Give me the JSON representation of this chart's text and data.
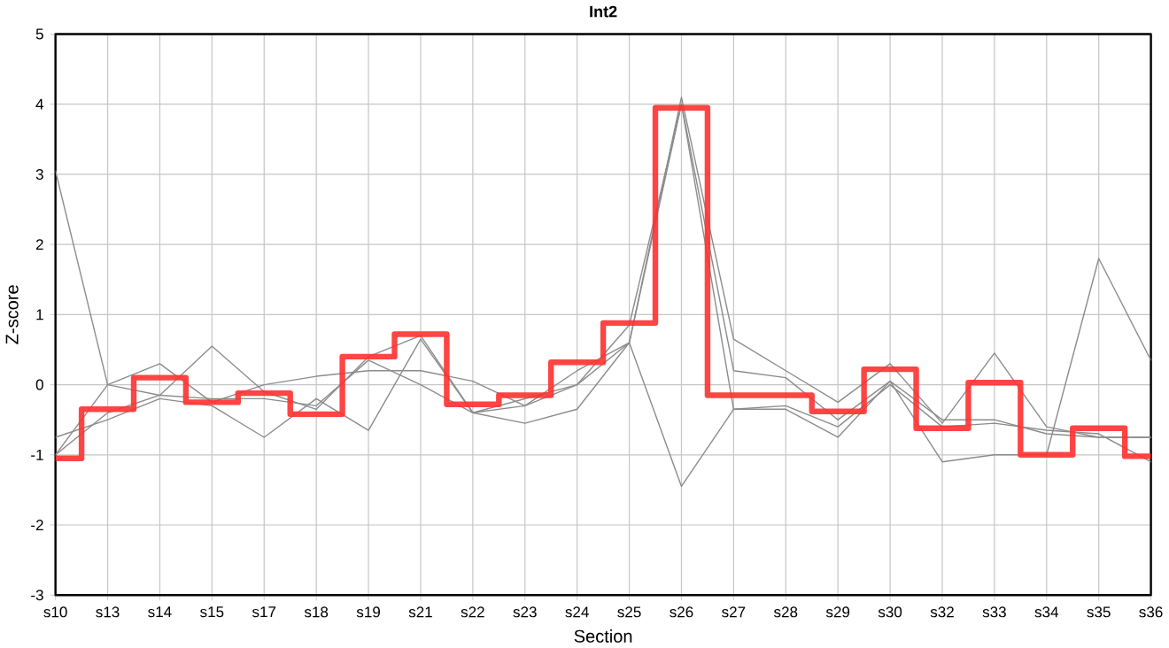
{
  "chart_data": {
    "type": "line",
    "title": "Int2",
    "xlabel": "Section",
    "ylabel": "Z-score",
    "categories": [
      "s10",
      "s13",
      "s14",
      "s15",
      "s17",
      "s18",
      "s19",
      "s21",
      "s22",
      "s23",
      "s24",
      "s25",
      "s26",
      "s27",
      "s28",
      "s29",
      "s30",
      "s32",
      "s33",
      "s34",
      "s35",
      "s36"
    ],
    "ylim": [
      -3,
      5
    ],
    "yticks": [
      -3,
      -2,
      -1,
      0,
      1,
      2,
      3,
      4,
      5
    ],
    "grid": true,
    "marker": "none",
    "line_style": "solid",
    "series": [
      {
        "color": "#8c8c8c",
        "values": [
          3.05,
          0.0,
          -0.15,
          0.55,
          -0.1,
          -0.35,
          0.4,
          0.7,
          -0.4,
          -0.3,
          0.0,
          0.6,
          4.1,
          0.65,
          0.2,
          -0.25,
          0.3,
          -0.55,
          0.45,
          -0.6,
          -0.75,
          -0.75
        ]
      },
      {
        "color": "#8c8c8c",
        "values": [
          -0.75,
          -0.5,
          -0.2,
          -0.3,
          -0.75,
          -0.2,
          -0.65,
          0.65,
          -0.4,
          -0.55,
          -0.35,
          0.6,
          -1.45,
          -0.35,
          -0.35,
          -0.75,
          0.05,
          -1.1,
          -1.0,
          -1.0,
          1.8,
          0.35
        ]
      },
      {
        "color": "#8c8c8c",
        "values": [
          -1.0,
          0.0,
          0.3,
          -0.25,
          0.0,
          0.12,
          0.2,
          0.2,
          0.05,
          -0.3,
          0.2,
          0.6,
          4.0,
          0.2,
          0.1,
          -0.5,
          0.05,
          -0.5,
          -0.5,
          -0.7,
          -0.75,
          -0.75
        ]
      },
      {
        "color": "#8c8c8c",
        "values": [
          -1.0,
          -0.4,
          -0.15,
          -0.2,
          -0.2,
          -0.3,
          0.35,
          0.0,
          -0.4,
          -0.2,
          0.0,
          0.85,
          4.0,
          -0.35,
          -0.3,
          -0.6,
          0.0,
          -0.6,
          -0.55,
          -0.65,
          -0.7,
          -1.1
        ]
      },
      {
        "type": "step",
        "color": "#ff3030",
        "values": [
          -1.05,
          -0.35,
          0.1,
          -0.25,
          -0.12,
          -0.42,
          0.4,
          0.72,
          -0.28,
          -0.15,
          0.32,
          0.88,
          3.95,
          -0.15,
          -0.15,
          -0.38,
          0.22,
          -0.62,
          0.03,
          -1.0,
          -0.62,
          -1.02
        ]
      }
    ]
  }
}
